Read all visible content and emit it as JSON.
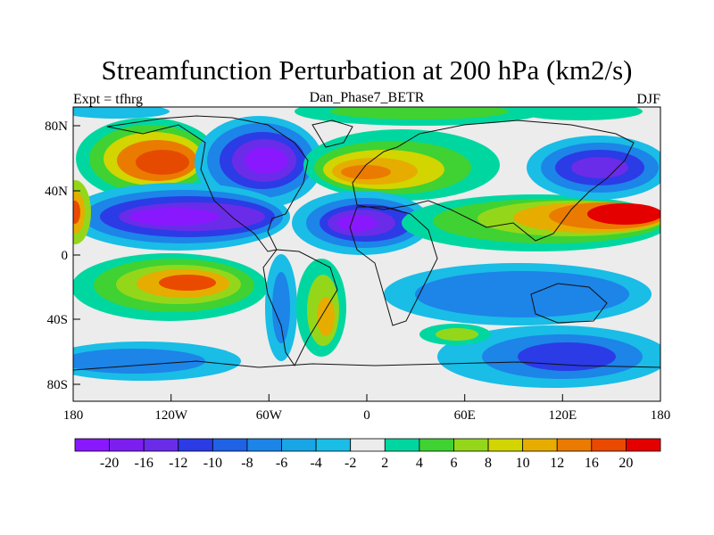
{
  "title": "Streamfunction Perturbation at 200 hPa (km2/s)",
  "left_label": "Expt = tfhrg",
  "center_label": "Dan_Phase7_BETR",
  "right_label": "DJF",
  "axes": {
    "x_ticks": [
      "180",
      "120W",
      "60W",
      "0",
      "60E",
      "120E",
      "180"
    ],
    "y_ticks": [
      "80N",
      "40N",
      "0",
      "40S",
      "80S"
    ]
  },
  "colorbar": {
    "labels": [
      "-20",
      "-16",
      "-12",
      "-10",
      "-8",
      "-6",
      "-4",
      "-2",
      "2",
      "4",
      "6",
      "8",
      "10",
      "12",
      "16",
      "20"
    ],
    "colors": [
      "#8a18ff",
      "#7c1ef0",
      "#6a2ce8",
      "#2b3be6",
      "#1f62e6",
      "#1d84e8",
      "#19a6e6",
      "#19bde6",
      "#ececec",
      "#00d7a0",
      "#3fd232",
      "#94d71a",
      "#d2d500",
      "#e6ad00",
      "#ea7b00",
      "#ea4a00",
      "#e50000"
    ]
  }
}
